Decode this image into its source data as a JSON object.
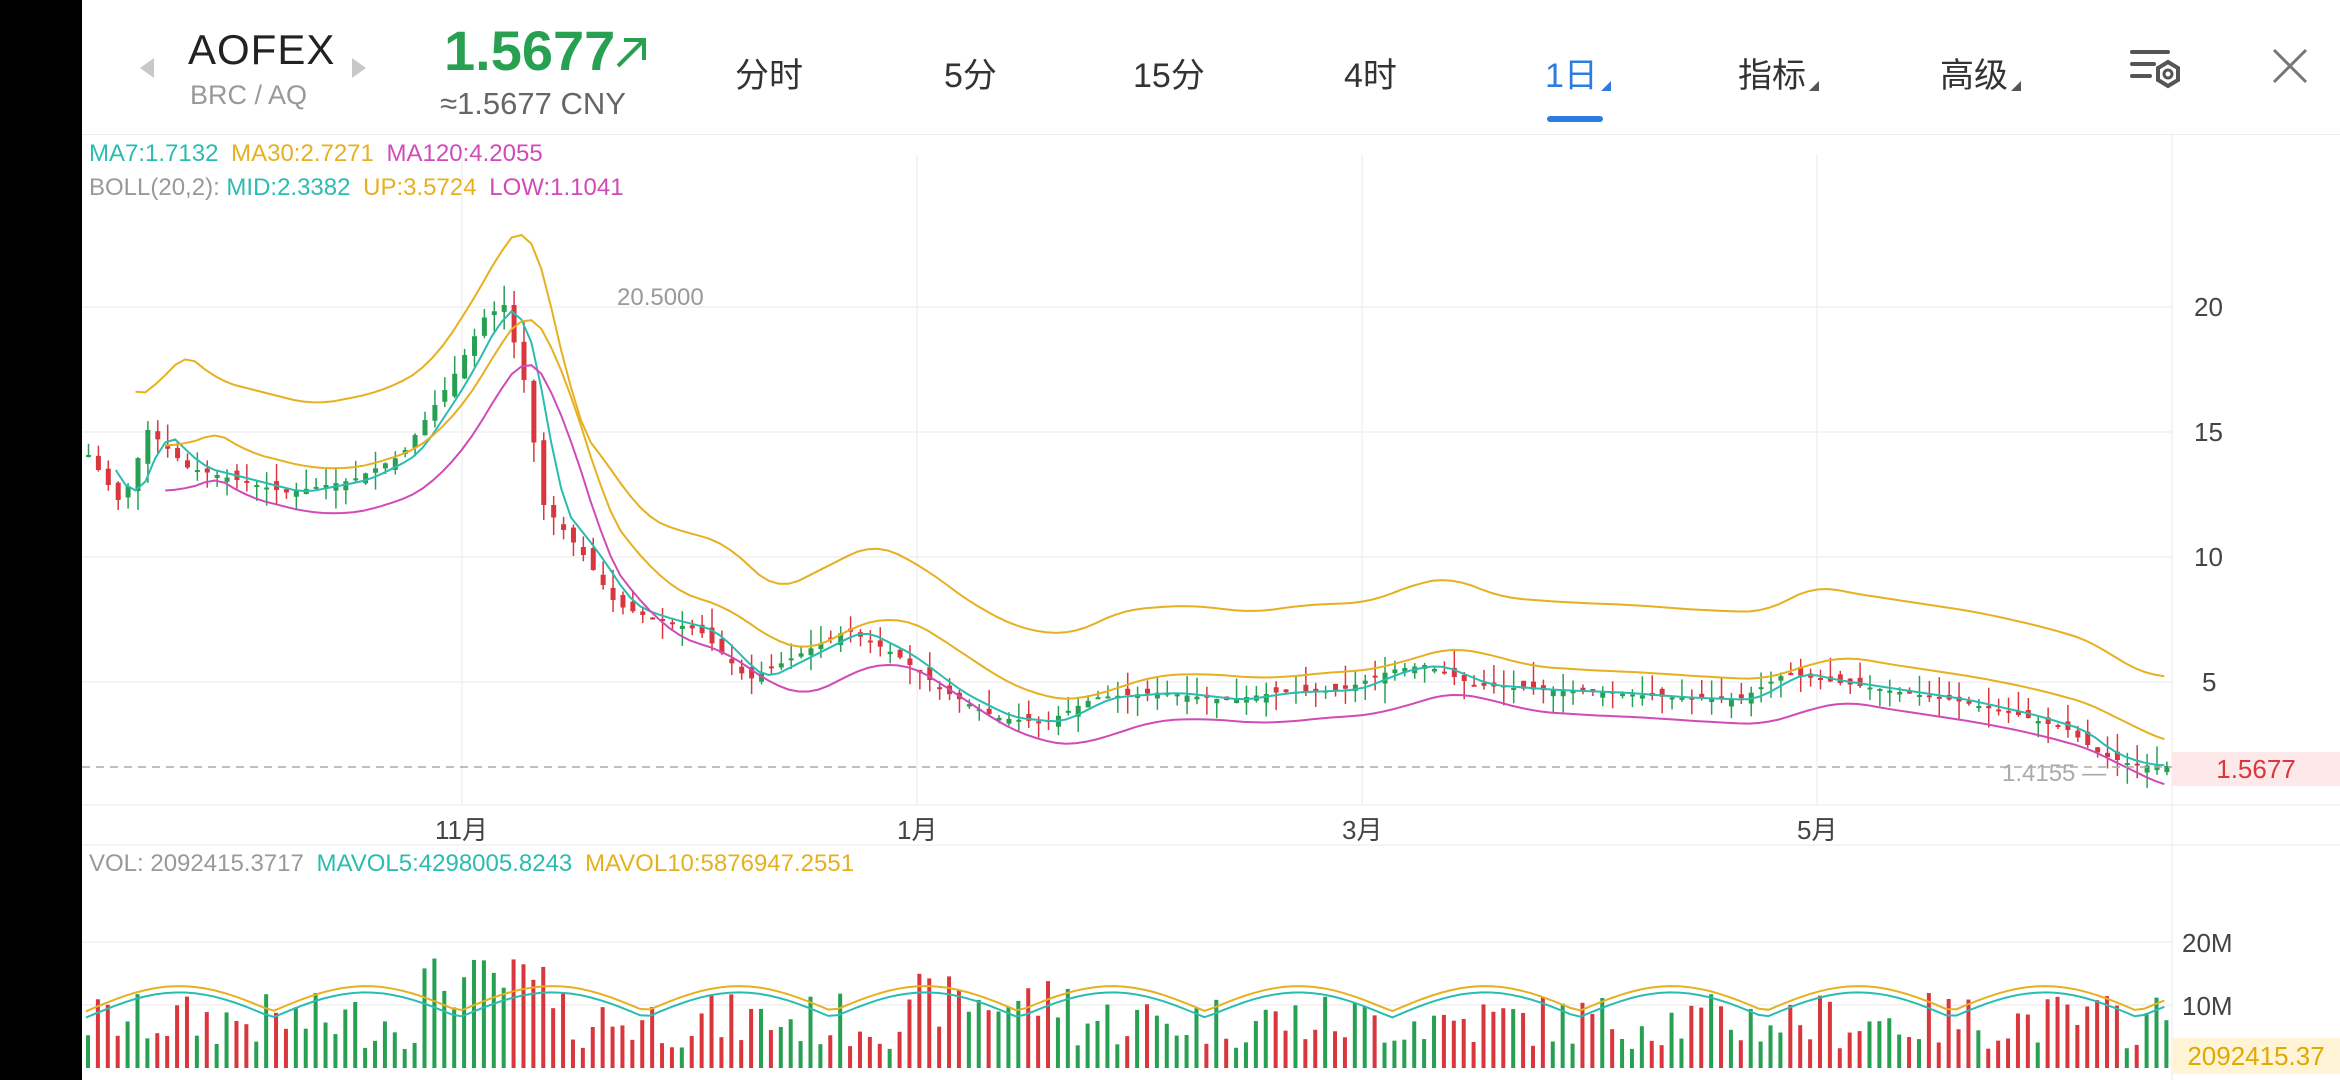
{
  "header": {
    "pair_name": "AOFEX",
    "pair_sub": "BRC / AQ",
    "price": "1.5677",
    "price_cny": "≈1.5677 CNY",
    "tabs": [
      {
        "label": "分时",
        "active": false,
        "dropdown": false
      },
      {
        "label": "5分",
        "active": false,
        "dropdown": false
      },
      {
        "label": "15分",
        "active": false,
        "dropdown": false
      },
      {
        "label": "4时",
        "active": false,
        "dropdown": false
      },
      {
        "label": "1日",
        "active": true,
        "dropdown": true
      },
      {
        "label": "指标",
        "active": false,
        "dropdown": true
      },
      {
        "label": "高级",
        "active": false,
        "dropdown": true
      }
    ],
    "icons": {
      "prev": "chevron-left-icon",
      "next": "chevron-right-icon",
      "up_arrow": "arrow-up-right-icon",
      "settings": "chart-settings-icon",
      "close": "close-icon"
    }
  },
  "legend": {
    "ma7": "MA7:1.7132",
    "ma30": "MA30:2.7271",
    "ma120": "MA120:4.2055",
    "boll_label": "BOLL(20,2):",
    "boll_mid": "MID:2.3382",
    "boll_up": "UP:3.5724",
    "boll_low": "LOW:1.1041"
  },
  "volume_legend": {
    "vol": "VOL: 2092415.3717",
    "mavol5": "MAVOL5:4298005.8243",
    "mavol10": "MAVOL10:5876947.2551"
  },
  "price_axis": {
    "ticks": [
      "20",
      "15",
      "10",
      "5"
    ],
    "current_price_tag": "1.5677"
  },
  "volume_axis": {
    "ticks": [
      "20M",
      "10M"
    ],
    "current_volume_tag": "2092415.37"
  },
  "time_axis": {
    "ticks": [
      "11月",
      "1月",
      "3月",
      "5月"
    ]
  },
  "annotations": {
    "high": "20.5000",
    "low": "1.4155"
  },
  "colors": {
    "up": "#27a052",
    "down": "#d9363e",
    "ma7": "#2bbcb0",
    "ma30": "#e6b020",
    "ma120": "#d04bb8",
    "active_tab": "#2f7ce0"
  }
}
